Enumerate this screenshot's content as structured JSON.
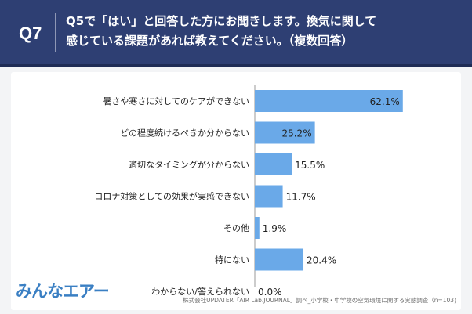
{
  "header": {
    "qnum": "Q7",
    "question_line1": "Q5で「はい」と回答した方にお聞きします。換気に関して",
    "question_line2": "感じている課題があれば教えてください。（複数回答）"
  },
  "logo": {
    "text": "みんなエアー"
  },
  "source": "株式会社UPDATER「AIR Lab.JOURNAL」調べ_小学校・中学校の空気環境に関する実態調査（n=103)",
  "colors": {
    "header_bg": "#2e3f73",
    "bar": "#6aa9e8",
    "panel_bg": "#ffffff",
    "page_bg": "#f3f4f6"
  },
  "chart_data": {
    "type": "bar",
    "orientation": "horizontal",
    "unit": "%",
    "categories": [
      "暑さや寒さに対してのケアができない",
      "どの程度続けるべきか分からない",
      "適切なタイミングが分からない",
      "コロナ対策としての効果が実感できない",
      "その他",
      "特にない",
      "わからない/答えられない"
    ],
    "values": [
      62.1,
      25.2,
      15.5,
      11.7,
      1.9,
      20.4,
      0.0
    ],
    "value_labels": [
      "62.1%",
      "25.2%",
      "15.5%",
      "11.7%",
      "1.9%",
      "20.4%",
      "0.0%"
    ],
    "xlim": [
      0,
      100
    ],
    "grid": false,
    "legend": "none"
  }
}
